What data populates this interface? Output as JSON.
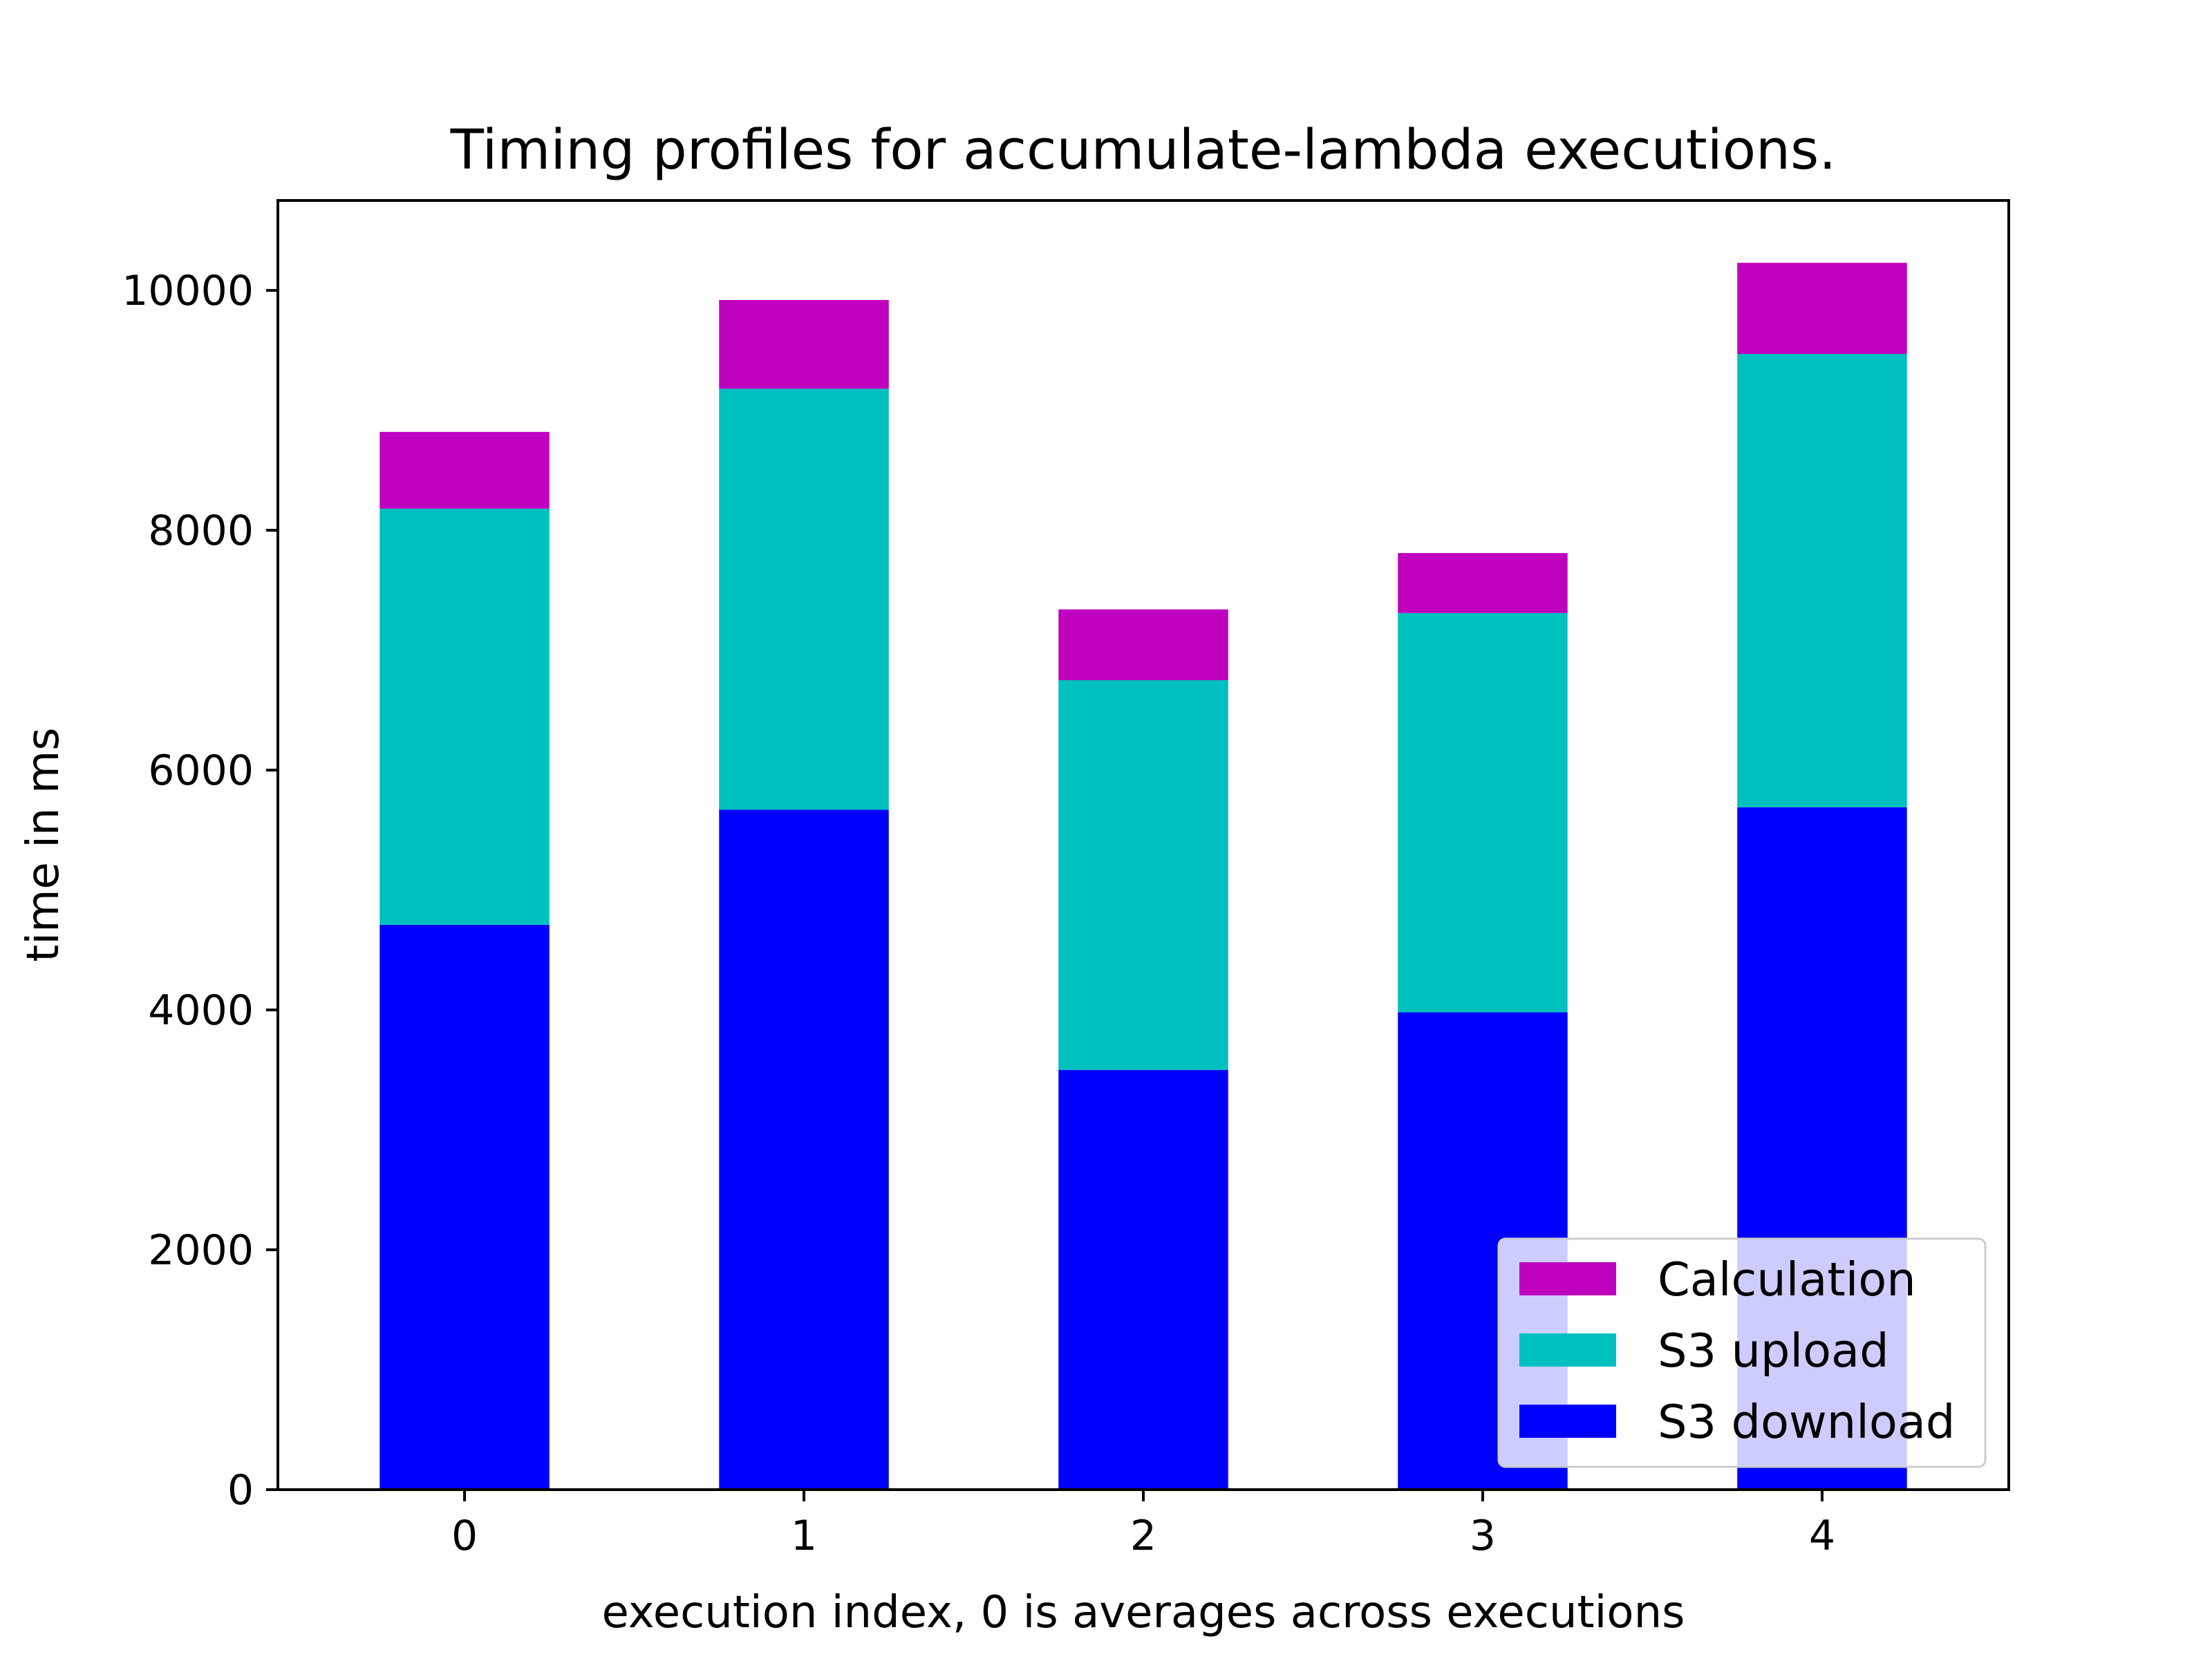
{
  "chart_data": {
    "type": "bar",
    "stacked": true,
    "title": "Timing profiles for accumulate-lambda executions.",
    "xlabel": "execution index, 0 is averages across executions",
    "ylabel": "time in ms",
    "categories": [
      "0",
      "1",
      "2",
      "3",
      "4"
    ],
    "y_ticks": [
      "0",
      "2000",
      "4000",
      "6000",
      "8000",
      "10000"
    ],
    "ylim": [
      0,
      10750
    ],
    "grid": false,
    "legend_position": "lower right",
    "series": [
      {
        "name": "S3 download",
        "color": "#0000ff",
        "values": [
          4710,
          5670,
          3500,
          3980,
          5690
        ]
      },
      {
        "name": "S3 upload",
        "color": "#00bfbf",
        "values": [
          3470,
          3510,
          3250,
          3330,
          3780
        ]
      },
      {
        "name": "Calculation",
        "color": "#bf00bf",
        "values": [
          640,
          740,
          590,
          500,
          760
        ]
      }
    ],
    "legend_order": [
      "Calculation",
      "S3 upload",
      "S3 download"
    ]
  }
}
